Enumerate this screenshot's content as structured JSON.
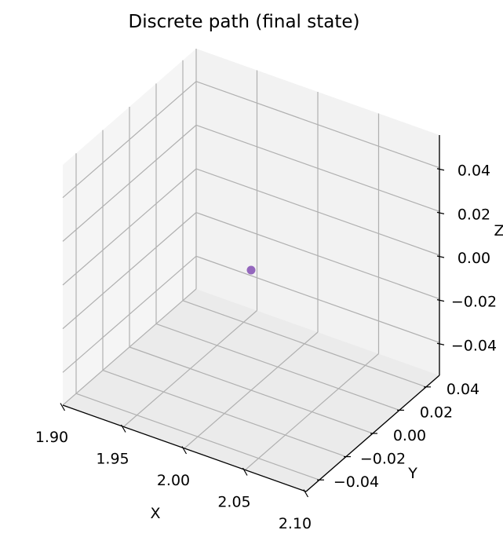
{
  "chart_data": {
    "type": "scatter",
    "title": "Discrete path (final state)",
    "xlabel": "X",
    "ylabel": "Y",
    "zlabel": "Z",
    "xlim": [
      1.9,
      2.1
    ],
    "ylim": [
      -0.05,
      0.05
    ],
    "zlim": [
      -0.055,
      0.055
    ],
    "x_ticks": [
      "1.90",
      "1.95",
      "2.00",
      "2.05",
      "2.10"
    ],
    "y_ticks": [
      "−0.04",
      "−0.02",
      "0.00",
      "0.02",
      "0.04"
    ],
    "z_ticks": [
      "−0.04",
      "−0.02",
      "0.00",
      "0.02",
      "0.04"
    ],
    "points": [
      {
        "x": 2.0,
        "y": 0.0,
        "z": 0.0
      }
    ],
    "grid": true,
    "colors": {
      "point": "#9467bd",
      "pane_back": "#f2f2f2",
      "pane_side": "#f5f5f5",
      "pane_floor": "#ebebeb",
      "grid": "#b0b0b0"
    }
  }
}
